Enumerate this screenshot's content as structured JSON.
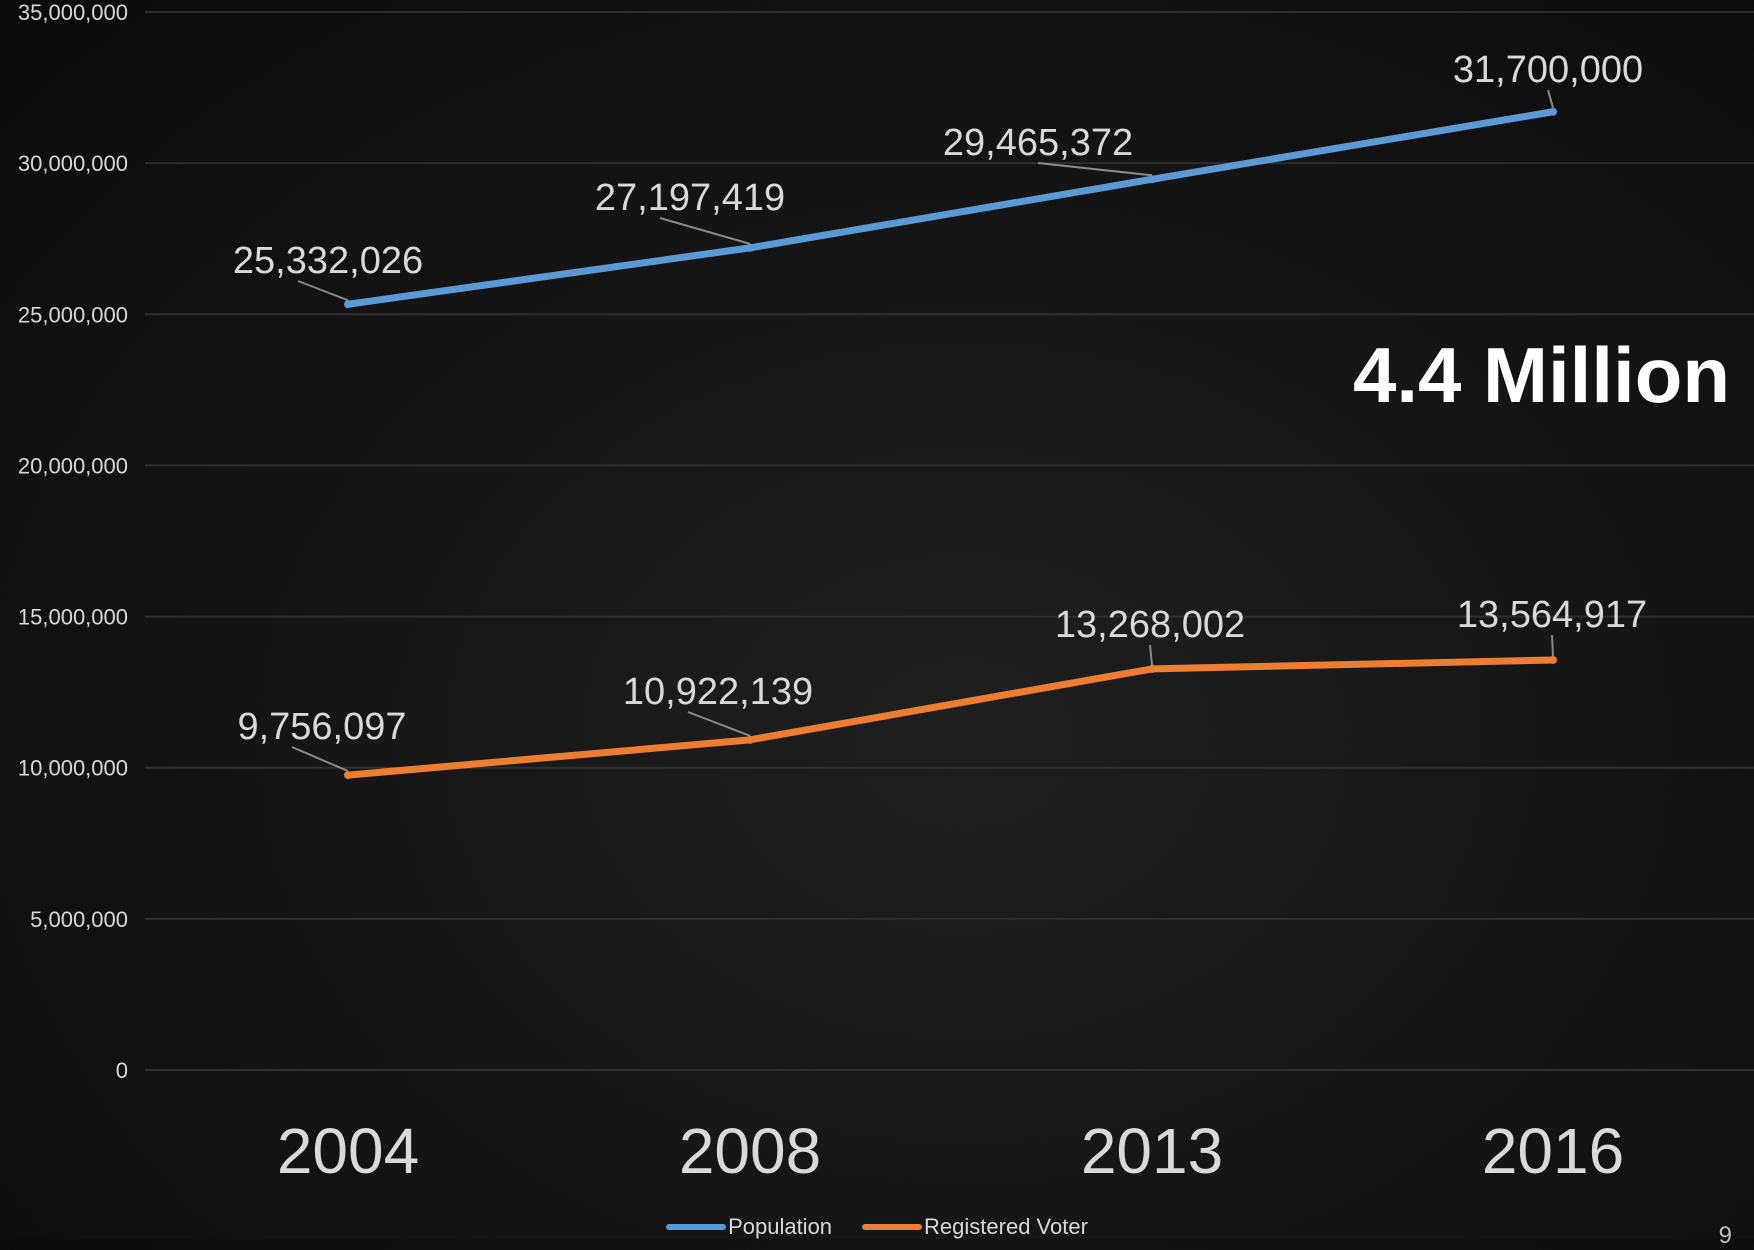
{
  "chart_data": {
    "type": "line",
    "categories": [
      "2004",
      "2008",
      "2013",
      "2016"
    ],
    "series": [
      {
        "name": "Population",
        "color": "#5b9bd5",
        "values": [
          25332026,
          27197419,
          29465372,
          31700000
        ],
        "labels": [
          "25,332,026",
          "27,197,419",
          "29,465,372",
          "31,700,000"
        ]
      },
      {
        "name": "Registered Voter",
        "color": "#ed7d31",
        "values": [
          9756097,
          10922139,
          13268002,
          13564917
        ],
        "labels": [
          "9,756,097",
          "10,922,139",
          "13,268,002",
          "13,564,917"
        ]
      }
    ],
    "ylim": [
      0,
      35000000
    ],
    "yticks": [
      "0",
      "5,000,000",
      "10,000,000",
      "15,000,000",
      "20,000,000",
      "25,000,000",
      "30,000,000",
      "35,000,000"
    ],
    "grid": true,
    "legend": "bottom",
    "annotation": "4.4 Million"
  },
  "slide_number": "9"
}
